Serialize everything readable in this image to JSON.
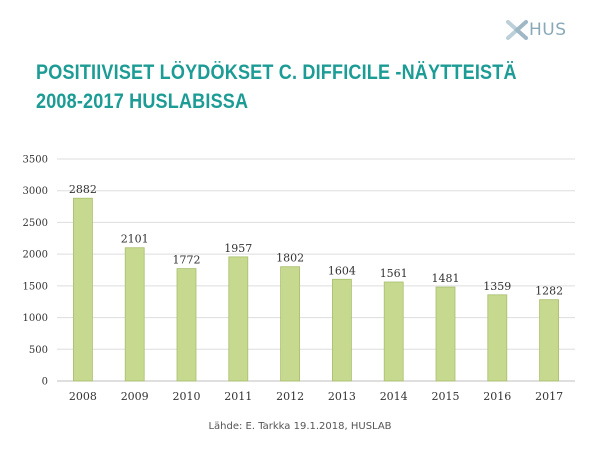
{
  "logo": {
    "text": "HUS",
    "icon": "hus-cross-logo-icon"
  },
  "title": {
    "line1": "POSITIIVISET LÖYDÖKSET C. DIFFICILE -NÄYTTEISTÄ",
    "line2": "2008-2017 HUSLABISSA"
  },
  "source": "Lähde: E. Tarkka 19.1.2018,  HUSLAB",
  "colors": {
    "title": "#1c9c95",
    "bar_fill": "#c6d98f",
    "bar_stroke": "#a9bf6e",
    "grid": "#dddddd"
  },
  "chart_data": {
    "type": "bar",
    "categories": [
      "2008",
      "2009",
      "2010",
      "2011",
      "2012",
      "2013",
      "2014",
      "2015",
      "2016",
      "2017"
    ],
    "values": [
      2882,
      2101,
      1772,
      1957,
      1802,
      1604,
      1561,
      1481,
      1359,
      1282
    ],
    "data_labels": [
      "2882",
      "2101",
      "1772",
      "1957",
      "1802",
      "1604",
      "1561",
      "1481",
      "1359",
      "1282"
    ],
    "y_ticks": [
      "0",
      "500",
      "1000",
      "1500",
      "2000",
      "2500",
      "3000",
      "3500"
    ],
    "ylim": [
      0,
      3500
    ],
    "grid": true,
    "legend": "none"
  }
}
